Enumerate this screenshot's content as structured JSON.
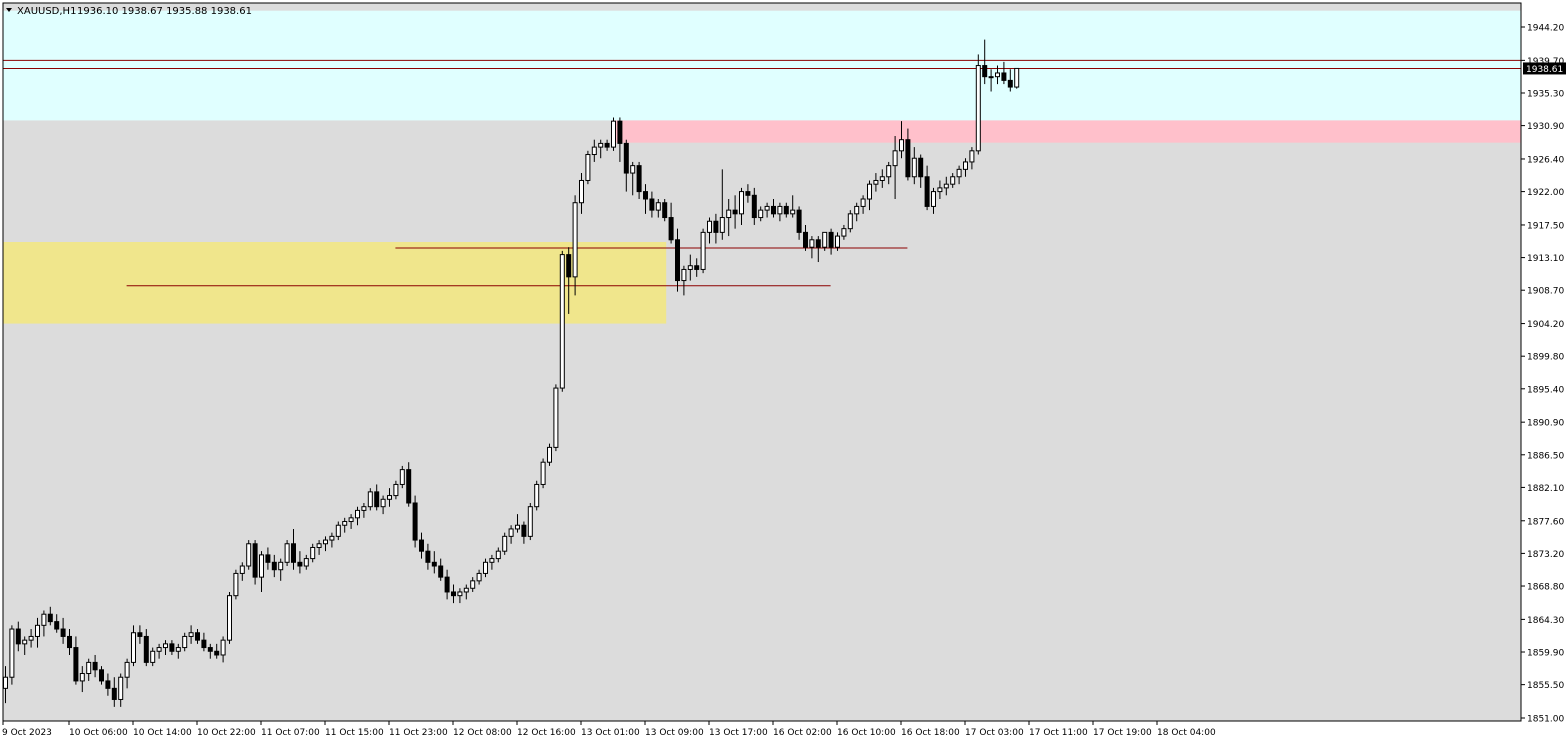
{
  "header": {
    "symbol": "XAUUSD,H1",
    "ohlc": "1936.10 1938.67 1935.88 1938.61"
  },
  "colors": {
    "background": "#ffffff",
    "chart_bg": "#dcdcdc",
    "premium_zone": "#e0ffff",
    "supply_zone": "#ffc0cb",
    "demand_zone": "#f0e68c",
    "level_line": "#8b0000",
    "bull_candle": "#ffffff",
    "bear_candle": "#000000",
    "price_tag_bg": "#000000",
    "price_tag_text": "#ffffff"
  },
  "chart_data": {
    "type": "candlestick",
    "title": "XAUUSD,H1",
    "ylim": [
      1851.0,
      1946.4
    ],
    "y_ticks": [
      "1944.20",
      "1939.70",
      "1935.30",
      "1930.90",
      "1926.40",
      "1922.00",
      "1917.50",
      "1913.10",
      "1908.70",
      "1904.20",
      "1899.80",
      "1895.40",
      "1890.90",
      "1886.50",
      "1882.10",
      "1877.60",
      "1873.20",
      "1868.80",
      "1864.30",
      "1859.90",
      "1855.50",
      "1851.00"
    ],
    "x_ticks": [
      "9 Oct 2023",
      "10 Oct 06:00",
      "10 Oct 14:00",
      "10 Oct 22:00",
      "11 Oct 07:00",
      "11 Oct 15:00",
      "11 Oct 23:00",
      "12 Oct 08:00",
      "12 Oct 16:00",
      "13 Oct 01:00",
      "13 Oct 09:00",
      "13 Oct 17:00",
      "16 Oct 02:00",
      "16 Oct 10:00",
      "16 Oct 18:00",
      "17 Oct 03:00",
      "17 Oct 11:00",
      "17 Oct 19:00",
      "18 Oct 04:00"
    ],
    "current_price": "1938.61",
    "levels": [
      {
        "price": 1939.7,
        "from_bar": 0
      },
      {
        "price": 1938.61,
        "from_bar": 0
      },
      {
        "price": 1914.4,
        "from_bar": 61
      },
      {
        "price": 1909.3,
        "from_bar": 19
      }
    ],
    "zones": [
      {
        "kind": "premium",
        "top": 1946.4,
        "bottom": 1931.6,
        "from_bar": 0
      },
      {
        "kind": "supply",
        "top": 1931.6,
        "bottom": 1928.6,
        "from_bar": 95
      },
      {
        "kind": "demand",
        "top": 1915.2,
        "bottom": 1904.2,
        "from_bar": 0,
        "to_bar": 103
      }
    ],
    "candles": [
      [
        1855.0,
        1858.0,
        1853.0,
        1856.5
      ],
      [
        1856.5,
        1863.5,
        1855.5,
        1863.0
      ],
      [
        1863.0,
        1864.0,
        1860.0,
        1861.0
      ],
      [
        1861.0,
        1862.0,
        1859.5,
        1861.5
      ],
      [
        1861.5,
        1863.0,
        1860.5,
        1862.0
      ],
      [
        1862.0,
        1864.5,
        1860.5,
        1863.5
      ],
      [
        1863.5,
        1865.5,
        1862.0,
        1865.0
      ],
      [
        1865.0,
        1866.0,
        1863.5,
        1864.0
      ],
      [
        1864.0,
        1865.0,
        1862.5,
        1863.0
      ],
      [
        1863.0,
        1864.5,
        1861.0,
        1862.0
      ],
      [
        1862.0,
        1863.0,
        1859.5,
        1860.5
      ],
      [
        1860.5,
        1862.0,
        1855.5,
        1856.0
      ],
      [
        1856.0,
        1858.0,
        1854.5,
        1857.0
      ],
      [
        1857.0,
        1859.0,
        1856.0,
        1858.5
      ],
      [
        1858.5,
        1859.5,
        1856.5,
        1857.5
      ],
      [
        1857.5,
        1858.0,
        1855.5,
        1856.0
      ],
      [
        1856.0,
        1857.0,
        1854.0,
        1855.0
      ],
      [
        1855.0,
        1856.5,
        1852.5,
        1853.5
      ],
      [
        1853.5,
        1857.0,
        1852.5,
        1856.5
      ],
      [
        1856.5,
        1859.0,
        1855.0,
        1858.5
      ],
      [
        1858.5,
        1863.5,
        1858.0,
        1862.5
      ],
      [
        1862.5,
        1863.5,
        1861.0,
        1862.0
      ],
      [
        1862.0,
        1863.0,
        1858.0,
        1858.5
      ],
      [
        1858.5,
        1860.5,
        1858.0,
        1860.0
      ],
      [
        1860.0,
        1861.0,
        1859.0,
        1860.5
      ],
      [
        1860.5,
        1861.5,
        1859.5,
        1861.0
      ],
      [
        1861.0,
        1861.5,
        1859.5,
        1860.0
      ],
      [
        1860.0,
        1861.0,
        1859.0,
        1860.5
      ],
      [
        1860.5,
        1862.5,
        1860.0,
        1862.0
      ],
      [
        1862.0,
        1863.5,
        1861.0,
        1862.5
      ],
      [
        1862.5,
        1863.0,
        1861.0,
        1861.5
      ],
      [
        1861.5,
        1862.5,
        1860.0,
        1860.5
      ],
      [
        1860.5,
        1861.0,
        1859.0,
        1860.0
      ],
      [
        1860.0,
        1861.0,
        1859.0,
        1859.5
      ],
      [
        1859.5,
        1862.0,
        1858.5,
        1861.5
      ],
      [
        1861.5,
        1868.0,
        1861.0,
        1867.5
      ],
      [
        1867.5,
        1871.0,
        1867.0,
        1870.5
      ],
      [
        1870.5,
        1872.0,
        1869.5,
        1871.5
      ],
      [
        1871.5,
        1875.0,
        1871.0,
        1874.5
      ],
      [
        1874.5,
        1875.0,
        1869.0,
        1870.0
      ],
      [
        1870.0,
        1873.5,
        1868.0,
        1873.0
      ],
      [
        1873.0,
        1874.0,
        1871.0,
        1872.0
      ],
      [
        1872.0,
        1873.0,
        1870.0,
        1871.0
      ],
      [
        1871.0,
        1872.5,
        1869.5,
        1872.0
      ],
      [
        1872.0,
        1875.0,
        1871.5,
        1874.5
      ],
      [
        1874.5,
        1876.5,
        1871.0,
        1872.0
      ],
      [
        1872.0,
        1873.5,
        1870.5,
        1871.5
      ],
      [
        1871.5,
        1873.0,
        1871.0,
        1872.5
      ],
      [
        1872.5,
        1874.5,
        1872.0,
        1874.0
      ],
      [
        1874.0,
        1875.0,
        1873.0,
        1874.5
      ],
      [
        1874.5,
        1875.5,
        1873.5,
        1875.0
      ],
      [
        1875.0,
        1876.0,
        1874.0,
        1875.5
      ],
      [
        1875.5,
        1877.5,
        1875.0,
        1877.0
      ],
      [
        1877.0,
        1878.0,
        1876.0,
        1877.5
      ],
      [
        1877.5,
        1878.5,
        1876.5,
        1878.0
      ],
      [
        1878.0,
        1879.5,
        1877.0,
        1879.0
      ],
      [
        1879.0,
        1880.0,
        1878.0,
        1879.5
      ],
      [
        1879.5,
        1882.0,
        1879.0,
        1881.5
      ],
      [
        1881.5,
        1882.5,
        1879.0,
        1879.5
      ],
      [
        1879.5,
        1881.0,
        1878.5,
        1880.5
      ],
      [
        1880.5,
        1882.0,
        1879.5,
        1881.0
      ],
      [
        1881.0,
        1883.0,
        1880.5,
        1882.5
      ],
      [
        1882.5,
        1885.0,
        1882.0,
        1884.5
      ],
      [
        1884.5,
        1885.5,
        1879.5,
        1880.0
      ],
      [
        1880.0,
        1881.0,
        1874.0,
        1875.0
      ],
      [
        1875.0,
        1876.0,
        1872.5,
        1873.5
      ],
      [
        1873.5,
        1874.5,
        1871.0,
        1872.0
      ],
      [
        1872.0,
        1873.5,
        1870.5,
        1871.5
      ],
      [
        1871.5,
        1872.5,
        1869.5,
        1870.0
      ],
      [
        1870.0,
        1871.0,
        1867.0,
        1868.0
      ],
      [
        1868.0,
        1869.0,
        1866.5,
        1867.5
      ],
      [
        1867.5,
        1868.5,
        1866.5,
        1868.0
      ],
      [
        1868.0,
        1869.0,
        1867.0,
        1868.5
      ],
      [
        1868.5,
        1870.0,
        1868.0,
        1869.5
      ],
      [
        1869.5,
        1871.0,
        1869.0,
        1870.5
      ],
      [
        1870.5,
        1872.5,
        1870.0,
        1872.0
      ],
      [
        1872.0,
        1873.0,
        1871.0,
        1872.5
      ],
      [
        1872.5,
        1874.0,
        1872.0,
        1873.5
      ],
      [
        1873.5,
        1876.0,
        1873.0,
        1875.5
      ],
      [
        1875.5,
        1877.0,
        1874.5,
        1876.5
      ],
      [
        1876.5,
        1878.5,
        1876.0,
        1877.0
      ],
      [
        1877.0,
        1877.5,
        1874.5,
        1875.5
      ],
      [
        1875.5,
        1880.0,
        1875.0,
        1879.5
      ],
      [
        1879.5,
        1883.0,
        1879.0,
        1882.5
      ],
      [
        1882.5,
        1886.0,
        1882.0,
        1885.5
      ],
      [
        1885.5,
        1888.0,
        1885.0,
        1887.5
      ],
      [
        1887.5,
        1896.0,
        1887.0,
        1895.5
      ],
      [
        1895.5,
        1914.0,
        1895.0,
        1913.5
      ],
      [
        1913.5,
        1914.5,
        1905.5,
        1910.5
      ],
      [
        1910.5,
        1921.5,
        1908.0,
        1920.5
      ],
      [
        1920.5,
        1924.5,
        1919.0,
        1923.5
      ],
      [
        1923.5,
        1927.5,
        1923.0,
        1927.0
      ],
      [
        1927.0,
        1929.0,
        1926.0,
        1928.0
      ],
      [
        1928.0,
        1929.0,
        1926.5,
        1928.5
      ],
      [
        1928.5,
        1929.0,
        1927.5,
        1928.0
      ],
      [
        1928.0,
        1932.0,
        1927.5,
        1931.5
      ],
      [
        1931.5,
        1932.0,
        1926.0,
        1928.5
      ],
      [
        1928.5,
        1929.0,
        1922.0,
        1924.5
      ],
      [
        1924.5,
        1926.0,
        1921.5,
        1925.5
      ],
      [
        1925.5,
        1926.0,
        1921.0,
        1922.0
      ],
      [
        1922.0,
        1923.0,
        1919.0,
        1921.0
      ],
      [
        1921.0,
        1922.0,
        1918.5,
        1919.5
      ],
      [
        1919.5,
        1921.0,
        1918.5,
        1920.5
      ],
      [
        1920.5,
        1921.0,
        1918.0,
        1918.5
      ],
      [
        1918.5,
        1920.5,
        1915.0,
        1915.5
      ],
      [
        1915.5,
        1917.0,
        1908.5,
        1910.0
      ],
      [
        1910.0,
        1912.0,
        1908.0,
        1911.5
      ],
      [
        1911.5,
        1913.5,
        1910.0,
        1912.0
      ],
      [
        1912.0,
        1913.0,
        1910.5,
        1911.5
      ],
      [
        1911.5,
        1917.0,
        1911.0,
        1916.5
      ],
      [
        1916.5,
        1918.5,
        1915.0,
        1918.0
      ],
      [
        1918.0,
        1919.0,
        1915.0,
        1916.5
      ],
      [
        1916.5,
        1925.0,
        1915.5,
        1918.5
      ],
      [
        1918.5,
        1921.0,
        1916.0,
        1919.5
      ],
      [
        1919.5,
        1921.5,
        1917.0,
        1919.0
      ],
      [
        1919.0,
        1922.5,
        1917.5,
        1922.0
      ],
      [
        1922.0,
        1923.0,
        1920.5,
        1921.5
      ],
      [
        1921.5,
        1922.5,
        1917.5,
        1918.5
      ],
      [
        1918.5,
        1920.0,
        1918.0,
        1919.5
      ],
      [
        1919.5,
        1920.5,
        1918.5,
        1920.0
      ],
      [
        1920.0,
        1921.0,
        1918.5,
        1919.0
      ],
      [
        1919.0,
        1920.5,
        1918.0,
        1920.0
      ],
      [
        1920.0,
        1920.5,
        1918.5,
        1919.0
      ],
      [
        1919.0,
        1921.5,
        1918.5,
        1919.5
      ],
      [
        1919.5,
        1920.0,
        1915.5,
        1916.5
      ],
      [
        1916.5,
        1917.5,
        1914.0,
        1914.5
      ],
      [
        1914.5,
        1916.0,
        1913.0,
        1915.5
      ],
      [
        1915.5,
        1916.0,
        1912.5,
        1914.5
      ],
      [
        1914.5,
        1916.5,
        1914.0,
        1916.5
      ],
      [
        1916.5,
        1917.0,
        1913.5,
        1914.5
      ],
      [
        1914.5,
        1916.5,
        1914.0,
        1916.0
      ],
      [
        1916.0,
        1917.5,
        1915.5,
        1917.0
      ],
      [
        1917.0,
        1919.5,
        1916.5,
        1919.0
      ],
      [
        1919.0,
        1920.5,
        1918.0,
        1920.0
      ],
      [
        1920.0,
        1921.5,
        1919.0,
        1921.0
      ],
      [
        1921.0,
        1923.5,
        1919.5,
        1923.0
      ],
      [
        1923.0,
        1924.5,
        1922.0,
        1923.5
      ],
      [
        1923.5,
        1925.0,
        1922.5,
        1924.0
      ],
      [
        1924.0,
        1926.0,
        1923.0,
        1925.5
      ],
      [
        1925.5,
        1929.5,
        1921.0,
        1927.5
      ],
      [
        1927.5,
        1931.5,
        1926.5,
        1929.0
      ],
      [
        1929.0,
        1930.5,
        1923.5,
        1924.0
      ],
      [
        1924.0,
        1928.0,
        1923.0,
        1926.5
      ],
      [
        1926.5,
        1927.0,
        1922.5,
        1924.0
      ],
      [
        1924.0,
        1925.5,
        1919.5,
        1920.0
      ],
      [
        1920.0,
        1922.5,
        1919.0,
        1922.0
      ],
      [
        1922.0,
        1923.5,
        1921.0,
        1922.5
      ],
      [
        1922.5,
        1924.0,
        1921.5,
        1923.0
      ],
      [
        1923.0,
        1924.5,
        1922.5,
        1924.0
      ],
      [
        1924.0,
        1925.5,
        1923.0,
        1925.0
      ],
      [
        1925.0,
        1926.5,
        1924.0,
        1926.0
      ],
      [
        1926.0,
        1928.0,
        1925.0,
        1927.5
      ],
      [
        1927.5,
        1940.5,
        1927.0,
        1939.0
      ],
      [
        1939.0,
        1942.5,
        1936.5,
        1937.5
      ],
      [
        1937.5,
        1938.5,
        1935.5,
        1937.5
      ],
      [
        1937.5,
        1939.0,
        1936.5,
        1938.0
      ],
      [
        1938.0,
        1939.5,
        1936.5,
        1937.0
      ],
      [
        1937.0,
        1938.5,
        1935.5,
        1936.1
      ],
      [
        1936.1,
        1938.67,
        1935.88,
        1938.61
      ]
    ]
  }
}
